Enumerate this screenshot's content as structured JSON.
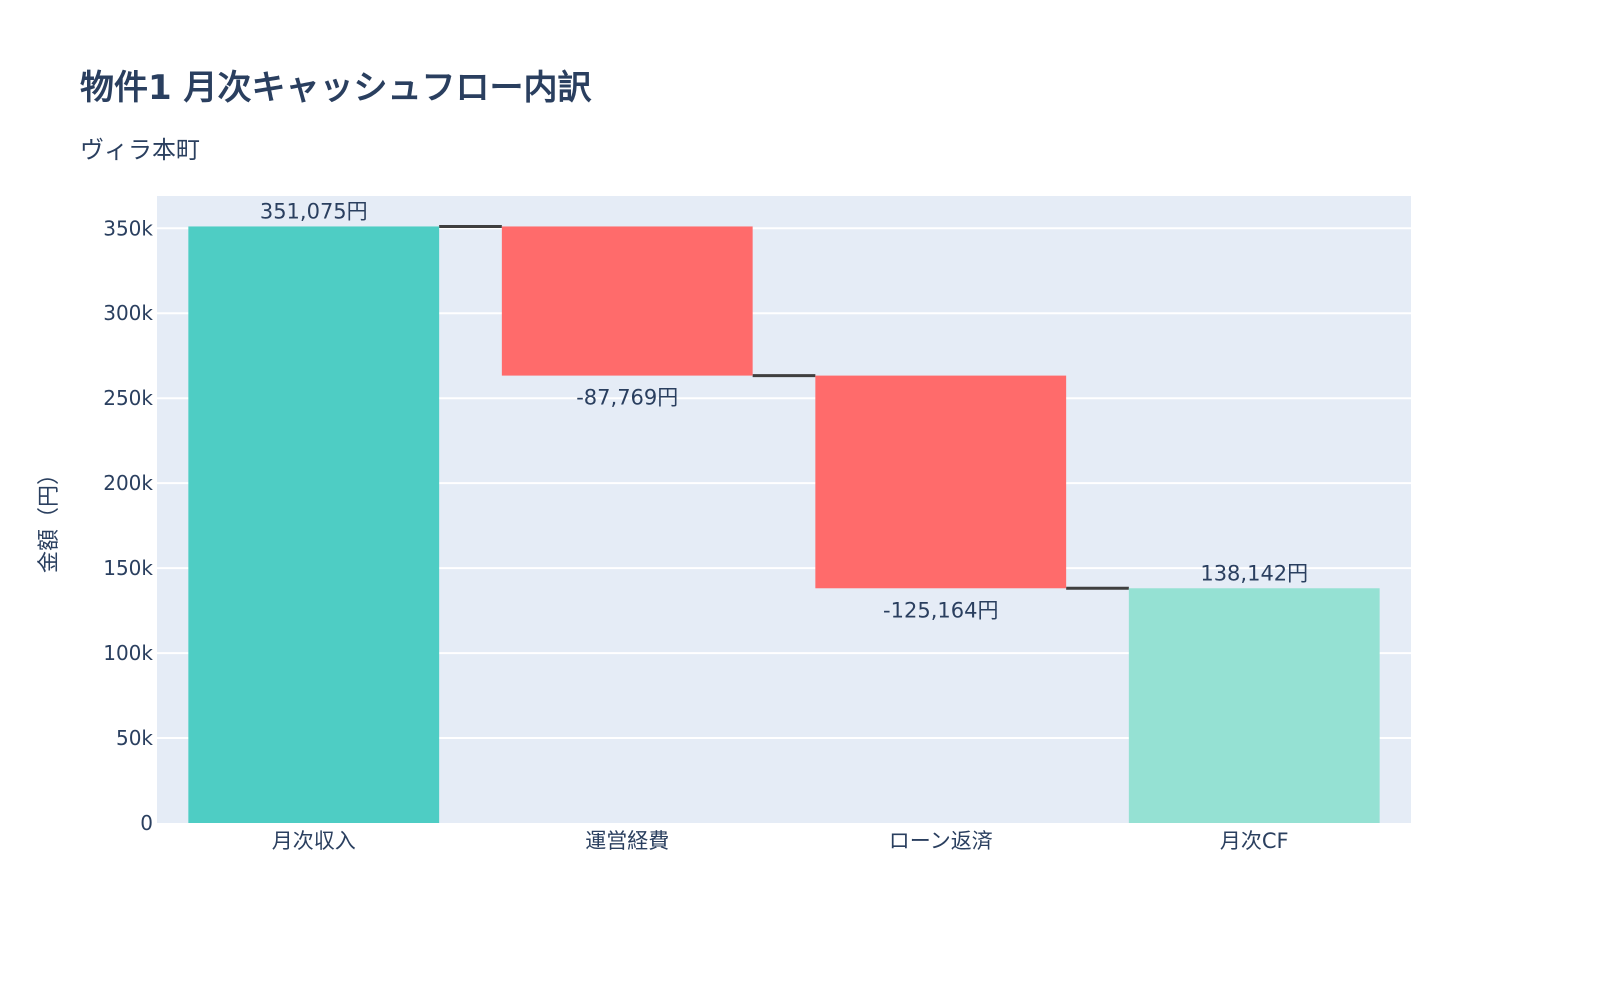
{
  "chart_data": {
    "type": "waterfall",
    "title": "物件1 月次キャッシュフロー内訳",
    "subtitle": "ヴィラ本町",
    "xlabel": "",
    "ylabel": "金額（円）",
    "categories": [
      "月次収入",
      "運営経費",
      "ローン返済",
      "月次CF"
    ],
    "measures": [
      "relative",
      "relative",
      "relative",
      "total"
    ],
    "values": [
      351075,
      -87769,
      -125164,
      138142
    ],
    "data_labels": [
      "351,075円",
      "-87,769円",
      "-125,164円",
      "138,142円"
    ],
    "ylim": [
      0,
      369000
    ],
    "yticks": [
      0,
      50000,
      100000,
      150000,
      200000,
      250000,
      300000,
      350000
    ],
    "ytick_labels": [
      "0",
      "50k",
      "100k",
      "150k",
      "200k",
      "250k",
      "300k",
      "350k"
    ],
    "grid": true,
    "colors": {
      "increasing": "#4ECDC4",
      "decreasing": "#FF6B6B",
      "total": "#95E1D3",
      "connector": "#3f3f3f",
      "plot_bg": "#E5ECF6"
    }
  }
}
